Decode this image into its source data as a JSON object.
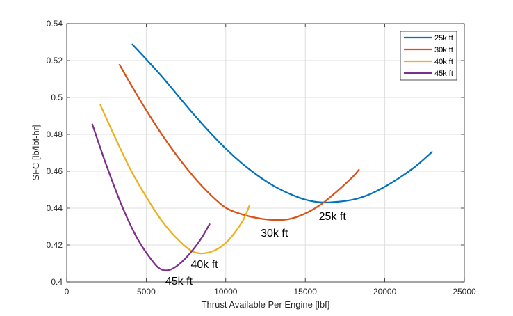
{
  "chart_data": {
    "type": "line",
    "xlabel": "Thrust Available Per Engine [lbf]",
    "ylabel": "SFC [lb/lbf-hr]",
    "xlim": [
      0,
      25000
    ],
    "ylim": [
      0.4,
      0.54
    ],
    "xticks": [
      0,
      5000,
      10000,
      15000,
      20000,
      25000
    ],
    "xtick_labels": [
      "0",
      "5000",
      "10000",
      "15000",
      "20000",
      "25000"
    ],
    "yticks": [
      0.4,
      0.42,
      0.44,
      0.46,
      0.48,
      0.5,
      0.52,
      0.54
    ],
    "ytick_labels": [
      "0.4",
      "0.42",
      "0.44",
      "0.46",
      "0.48",
      "0.5",
      "0.52",
      "0.54"
    ],
    "grid": true,
    "legend_position": "top-right",
    "series": [
      {
        "name": "25k ft",
        "color": "#0072BD",
        "x": [
          4100,
          5000,
          6000,
          7000,
          8000,
          9000,
          10000,
          11000,
          12000,
          13000,
          14000,
          15000,
          16000,
          17000,
          18000,
          19000,
          20000,
          21000,
          22000,
          23000
        ],
        "y": [
          0.529,
          0.5207,
          0.5112,
          0.5009,
          0.4907,
          0.4811,
          0.4722,
          0.4644,
          0.4577,
          0.4521,
          0.4478,
          0.4446,
          0.4431,
          0.4434,
          0.4446,
          0.4473,
          0.4516,
          0.4569,
          0.4631,
          0.4707
        ]
      },
      {
        "name": "30k ft",
        "color": "#D95319",
        "x": [
          3300,
          4000,
          5000,
          6000,
          7000,
          8000,
          9000,
          10000,
          11000,
          12000,
          13000,
          14000,
          15000,
          16000,
          17000,
          18000,
          18400
        ],
        "y": [
          0.5181,
          0.5075,
          0.4931,
          0.4797,
          0.4676,
          0.4568,
          0.4476,
          0.4402,
          0.4367,
          0.4346,
          0.4336,
          0.4341,
          0.4371,
          0.4421,
          0.4491,
          0.4571,
          0.4611
        ]
      },
      {
        "name": "40k ft",
        "color": "#EDB120",
        "x": [
          2100,
          3000,
          4000,
          5000,
          6000,
          7000,
          8000,
          9000,
          10000,
          11000,
          11500
        ],
        "y": [
          0.4962,
          0.4791,
          0.4611,
          0.4461,
          0.4329,
          0.4229,
          0.4162,
          0.4161,
          0.4211,
          0.4321,
          0.4416
        ]
      },
      {
        "name": "45k ft",
        "color": "#7E2F8E",
        "x": [
          1600,
          2500,
          3500,
          4500,
          5500,
          6000,
          6500,
          7000,
          7500,
          8000,
          8500,
          9000
        ],
        "y": [
          0.4857,
          0.4631,
          0.4406,
          0.4226,
          0.4101,
          0.4066,
          0.4066,
          0.4091,
          0.4131,
          0.4181,
          0.4241,
          0.4316
        ]
      }
    ],
    "annotations": [
      {
        "text": "25k ft",
        "x": 15850,
        "y": 0.4335
      },
      {
        "text": "30k ft",
        "x": 12200,
        "y": 0.4245
      },
      {
        "text": "40k ft",
        "x": 7800,
        "y": 0.4075
      },
      {
        "text": "45k ft",
        "x": 6200,
        "y": 0.3985
      }
    ]
  }
}
